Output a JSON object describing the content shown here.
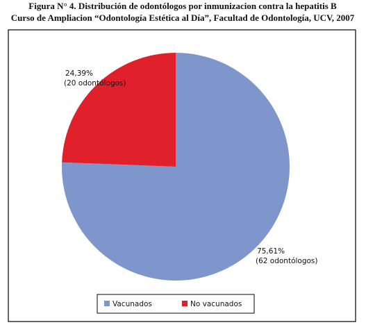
{
  "chart_data": {
    "type": "pie",
    "title": [
      "Figura N° 4. Distribución de odontólogos por inmunizacion contra la hepatitis B",
      "Curso de Ampliacion “Odontología Estética al Día”, Facultad de Odontología, UCV, 2007"
    ],
    "categories": [
      "Vacunados",
      "No vacunados"
    ],
    "values": [
      75.61,
      24.39
    ],
    "value_labels": [
      "75,61%",
      "24,39%"
    ],
    "annotations": [
      "(62 odontólogos)",
      "(20 odontólogos)"
    ],
    "colors": [
      "#7f96cc",
      "#e0202a"
    ],
    "legend": "bottom"
  }
}
